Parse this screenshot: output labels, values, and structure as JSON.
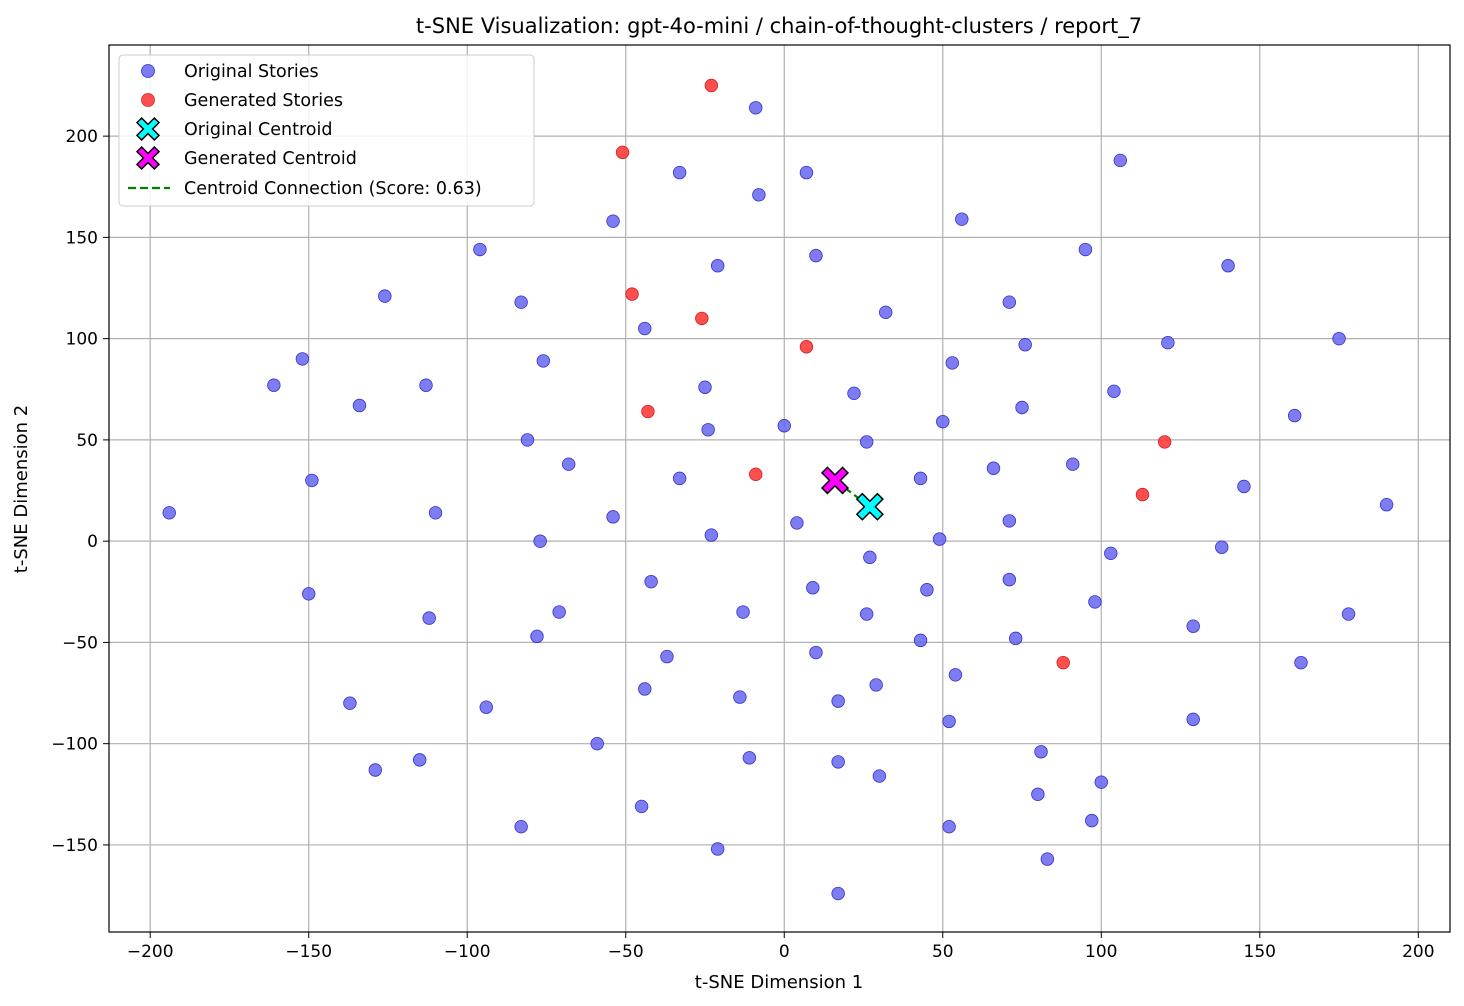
{
  "chart_data": {
    "type": "scatter",
    "title": "t-SNE Visualization: gpt-4o-mini / chain-of-thought-clusters / report_7",
    "xlabel": "t-SNE Dimension 1",
    "ylabel": "t-SNE Dimension 2",
    "xlim": [
      -213,
      210
    ],
    "ylim": [
      -193,
      245
    ],
    "xticks": [
      -200,
      -150,
      -100,
      -50,
      0,
      50,
      100,
      150,
      200
    ],
    "yticks": [
      -150,
      -100,
      -50,
      0,
      50,
      100,
      150,
      200
    ],
    "xtick_labels": [
      "−200",
      "−150",
      "−100",
      "−50",
      "0",
      "50",
      "100",
      "150",
      "200"
    ],
    "ytick_labels": [
      "−150",
      "−100",
      "−50",
      "0",
      "50",
      "100",
      "150",
      "200"
    ],
    "grid": true,
    "legend_position": "top-left",
    "legend": {
      "original_stories": "Original Stories",
      "generated_stories": "Generated Stories",
      "original_centroid": "Original Centroid",
      "generated_centroid": "Generated Centroid",
      "connection": "Centroid Connection (Score: 0.63)"
    },
    "colors": {
      "original": "#6666ee",
      "generated": "#ff3b3b",
      "original_centroid": "#00ffff",
      "generated_centroid": "#ff00ff",
      "connection": "#008000"
    },
    "series": [
      {
        "name": "Original Stories",
        "points": [
          [
            -9,
            214
          ],
          [
            -33,
            182
          ],
          [
            7,
            182
          ],
          [
            -8,
            171
          ],
          [
            106,
            188
          ],
          [
            -54,
            158
          ],
          [
            56,
            159
          ],
          [
            -96,
            144
          ],
          [
            95,
            144
          ],
          [
            -21,
            136
          ],
          [
            10,
            141
          ],
          [
            140,
            136
          ],
          [
            -126,
            121
          ],
          [
            -83,
            118
          ],
          [
            71,
            118
          ],
          [
            32,
            113
          ],
          [
            -44,
            105
          ],
          [
            121,
            98
          ],
          [
            175,
            100
          ],
          [
            76,
            97
          ],
          [
            -152,
            90
          ],
          [
            -76,
            89
          ],
          [
            53,
            88
          ],
          [
            -161,
            77
          ],
          [
            -113,
            77
          ],
          [
            -25,
            76
          ],
          [
            22,
            73
          ],
          [
            104,
            74
          ],
          [
            -134,
            67
          ],
          [
            75,
            66
          ],
          [
            161,
            62
          ],
          [
            -81,
            50
          ],
          [
            -24,
            55
          ],
          [
            0,
            57
          ],
          [
            50,
            59
          ],
          [
            26,
            49
          ],
          [
            -68,
            38
          ],
          [
            -33,
            31
          ],
          [
            43,
            31
          ],
          [
            66,
            36
          ],
          [
            91,
            38
          ],
          [
            145,
            27
          ],
          [
            -149,
            30
          ],
          [
            -194,
            14
          ],
          [
            -110,
            14
          ],
          [
            -54,
            12
          ],
          [
            4,
            9
          ],
          [
            71,
            10
          ],
          [
            190,
            18
          ],
          [
            -23,
            3
          ],
          [
            -77,
            0
          ],
          [
            49,
            1
          ],
          [
            138,
            -3
          ],
          [
            103,
            -6
          ],
          [
            27,
            -8
          ],
          [
            -42,
            -20
          ],
          [
            71,
            -19
          ],
          [
            9,
            -23
          ],
          [
            45,
            -24
          ],
          [
            -150,
            -26
          ],
          [
            98,
            -30
          ],
          [
            -71,
            -35
          ],
          [
            -13,
            -35
          ],
          [
            26,
            -36
          ],
          [
            178,
            -36
          ],
          [
            -112,
            -38
          ],
          [
            129,
            -42
          ],
          [
            -78,
            -47
          ],
          [
            43,
            -49
          ],
          [
            73,
            -48
          ],
          [
            -37,
            -57
          ],
          [
            10,
            -55
          ],
          [
            163,
            -60
          ],
          [
            54,
            -66
          ],
          [
            -44,
            -73
          ],
          [
            29,
            -71
          ],
          [
            -137,
            -80
          ],
          [
            -94,
            -82
          ],
          [
            -14,
            -77
          ],
          [
            17,
            -79
          ],
          [
            52,
            -89
          ],
          [
            129,
            -88
          ],
          [
            -59,
            -100
          ],
          [
            81,
            -104
          ],
          [
            -115,
            -108
          ],
          [
            -11,
            -107
          ],
          [
            17,
            -109
          ],
          [
            -129,
            -113
          ],
          [
            30,
            -116
          ],
          [
            100,
            -119
          ],
          [
            80,
            -125
          ],
          [
            -45,
            -131
          ],
          [
            97,
            -138
          ],
          [
            -83,
            -141
          ],
          [
            52,
            -141
          ],
          [
            -21,
            -152
          ],
          [
            83,
            -157
          ],
          [
            17,
            -174
          ]
        ]
      },
      {
        "name": "Generated Stories",
        "points": [
          [
            -23,
            225
          ],
          [
            -51,
            192
          ],
          [
            -48,
            122
          ],
          [
            -26,
            110
          ],
          [
            7,
            96
          ],
          [
            -43,
            64
          ],
          [
            120,
            49
          ],
          [
            -9,
            33
          ],
          [
            113,
            23
          ],
          [
            88,
            -60
          ]
        ]
      }
    ],
    "centroids": {
      "original": [
        27,
        17
      ],
      "generated": [
        16,
        30
      ]
    },
    "connection_score": 0.63
  }
}
